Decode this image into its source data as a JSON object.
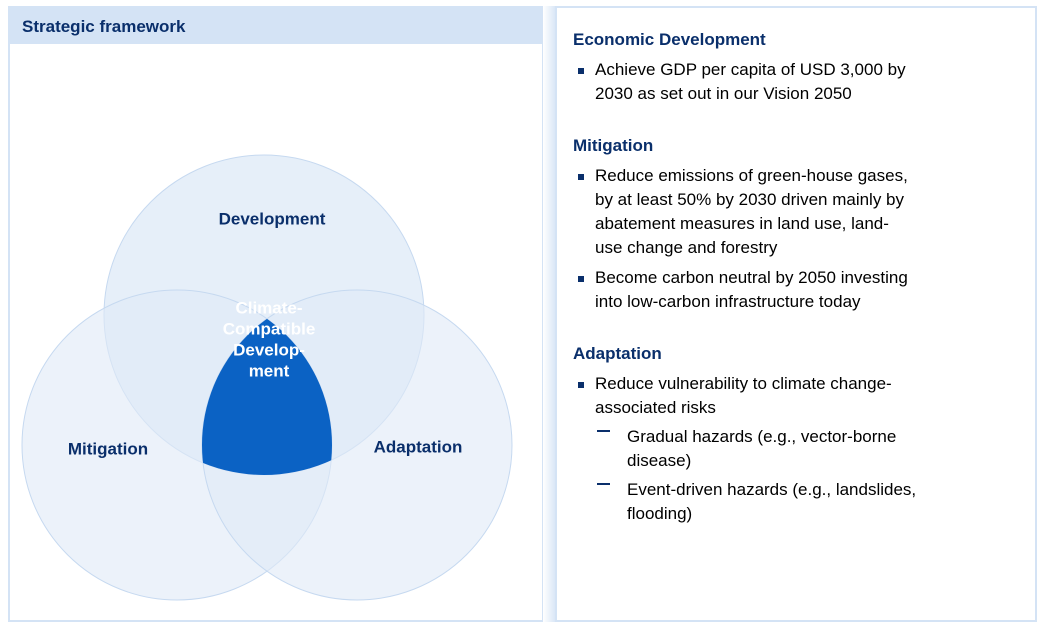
{
  "left": {
    "title": "Strategic framework",
    "venn": {
      "top": "Development",
      "left": "Mitigation",
      "right": "Adaptation",
      "center": [
        "Climate-",
        "Compatible",
        "Develop-",
        "ment"
      ]
    }
  },
  "right": {
    "sections": [
      {
        "heading": "Economic Development",
        "items": [
          {
            "lines": [
              "Achieve GDP per capita of USD 3,000 by",
              "2030 as set out in our Vision 2050"
            ]
          }
        ]
      },
      {
        "heading": "Mitigation",
        "items": [
          {
            "lines": [
              "Reduce emissions of green-house gases,",
              "by at least 50% by 2030 driven mainly by",
              "abatement measures in land use, land-",
              "use change and forestry"
            ]
          },
          {
            "lines": [
              "Become carbon neutral by 2050 investing",
              "into low-carbon infrastructure today"
            ]
          }
        ]
      },
      {
        "heading": "Adaptation",
        "items": [
          {
            "lines": [
              "Reduce vulnerability to climate change-",
              "associated risks"
            ],
            "subitems": [
              {
                "lines": [
                  "Gradual hazards (e.g., vector-borne",
                  "disease)"
                ]
              },
              {
                "lines": [
                  "Event-driven hazards (e.g., landslides,",
                  "flooding)"
                ]
              }
            ]
          }
        ]
      }
    ]
  }
}
